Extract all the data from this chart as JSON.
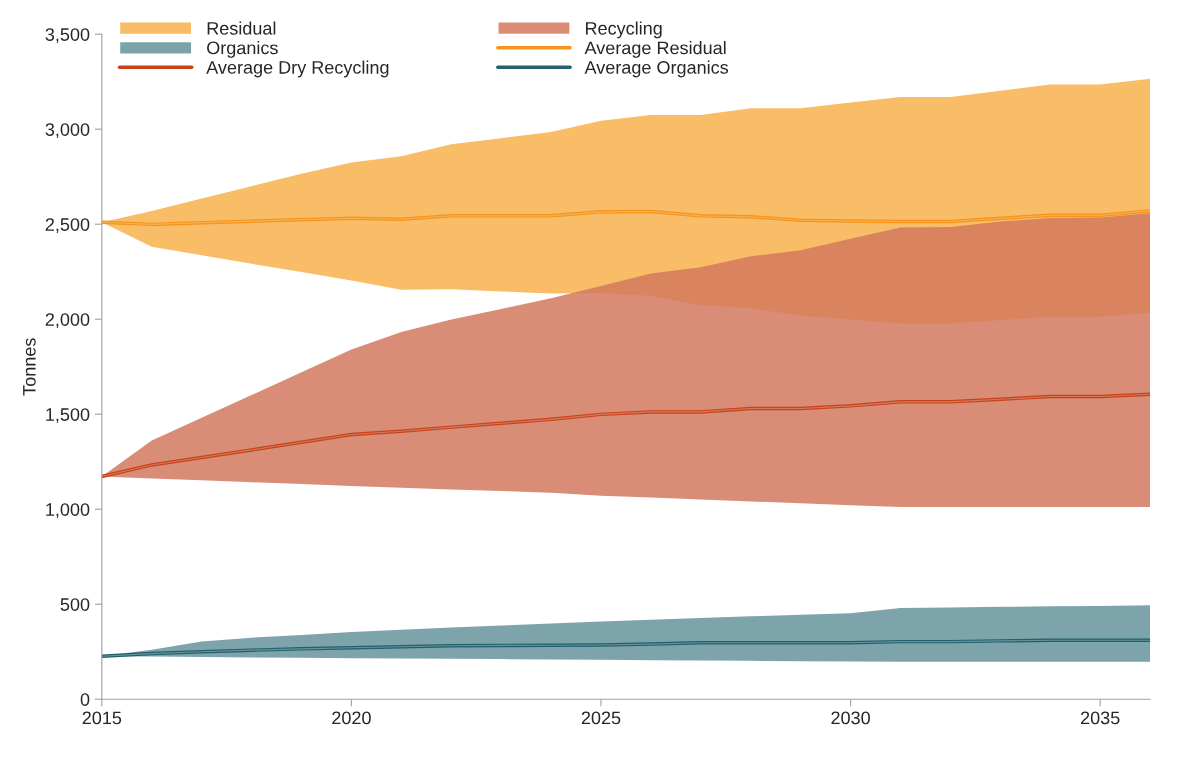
{
  "chart_data": {
    "type": "line",
    "ylabel": "Tonnes",
    "x": [
      2015,
      2016,
      2017,
      2018,
      2019,
      2020,
      2021,
      2022,
      2023,
      2024,
      2025,
      2026,
      2027,
      2028,
      2029,
      2030,
      2031,
      2032,
      2033,
      2034,
      2035,
      2036
    ],
    "series": [
      {
        "name": "Residual",
        "color": "#f8b04c",
        "values": [
          2510,
          2499,
          2508,
          2516,
          2524,
          2531,
          2526,
          2544,
          2544,
          2544,
          2565,
          2567,
          2544,
          2539,
          2521,
          2517,
          2514,
          2514,
          2531,
          2547,
          2547,
          2570
        ],
        "lower": [
          2510,
          2381,
          2336,
          2292,
          2248,
          2204,
          2155,
          2158,
          2146,
          2135,
          2138,
          2122,
          2074,
          2057,
          2018,
          1999,
          1977,
          1977,
          1995,
          2013,
          2013,
          2034
        ],
        "upper": [
          2510,
          2570,
          2635,
          2700,
          2765,
          2825,
          2858,
          2921,
          2953,
          2985,
          3045,
          3075,
          3075,
          3110,
          3110,
          3140,
          3170,
          3170,
          3202,
          3235,
          3235,
          3265
        ]
      },
      {
        "name": "Recycling",
        "color": "#d4795e",
        "values": [
          1172,
          1233,
          1272,
          1312,
          1352,
          1393,
          1410,
          1432,
          1452,
          1473,
          1499,
          1512,
          1512,
          1530,
          1530,
          1544,
          1565,
          1565,
          1579,
          1593,
          1593,
          1605
        ],
        "lower": [
          1172,
          1162,
          1152,
          1142,
          1132,
          1122,
          1113,
          1104,
          1096,
          1087,
          1071,
          1061,
          1051,
          1041,
          1031,
          1021,
          1012,
          1012,
          1012,
          1012,
          1012,
          1012
        ],
        "upper": [
          1172,
          1361,
          1481,
          1601,
          1721,
          1841,
          1933,
          1999,
          2054,
          2110,
          2175,
          2241,
          2273,
          2331,
          2363,
          2423,
          2482,
          2485,
          2514,
          2532,
          2535,
          2558
        ]
      },
      {
        "name": "Organics",
        "color": "#66949c",
        "values": [
          226,
          240,
          250,
          258,
          265,
          271,
          276,
          281,
          283,
          284,
          285,
          290,
          297,
          297,
          297,
          297,
          303,
          303,
          307,
          310,
          310,
          310
        ],
        "lower": [
          226,
          225,
          222,
          220,
          218,
          215,
          214,
          213,
          211,
          209,
          207,
          205,
          204,
          202,
          200,
          198,
          197,
          197,
          197,
          197,
          197,
          197
        ],
        "upper": [
          226,
          260,
          304,
          324,
          338,
          354,
          365,
          377,
          388,
          398,
          409,
          418,
          427,
          436,
          444,
          452,
          480,
          483,
          486,
          489,
          491,
          494
        ]
      },
      {
        "name": "Average Residual",
        "type": "line",
        "color": "#f7941d",
        "values": [
          2510,
          2499,
          2508,
          2516,
          2524,
          2531,
          2526,
          2544,
          2544,
          2544,
          2565,
          2567,
          2544,
          2539,
          2521,
          2517,
          2514,
          2514,
          2531,
          2547,
          2547,
          2570
        ]
      },
      {
        "name": "Average Dry Recycling",
        "type": "line",
        "color": "#c8431a",
        "values": [
          1172,
          1233,
          1272,
          1312,
          1352,
          1393,
          1410,
          1432,
          1452,
          1473,
          1499,
          1512,
          1512,
          1530,
          1530,
          1544,
          1565,
          1565,
          1579,
          1593,
          1593,
          1605
        ]
      },
      {
        "name": "Average Organics",
        "type": "line",
        "color": "#235f6d",
        "values": [
          226,
          240,
          250,
          258,
          265,
          271,
          276,
          281,
          283,
          284,
          285,
          290,
          297,
          297,
          297,
          297,
          303,
          303,
          307,
          310,
          310,
          310
        ]
      }
    ],
    "xlim": [
      2015,
      2036
    ],
    "xticks": [
      2015,
      2020,
      2025,
      2030,
      2035
    ],
    "ylim": [
      0,
      3500
    ],
    "yticks": [
      0,
      500,
      {
        "value": 1000,
        "label": "1,000"
      },
      {
        "value": 1500,
        "label": "1,500"
      },
      {
        "value": 2000,
        "label": "2,000"
      },
      {
        "value": 2500,
        "label": "2,500"
      },
      {
        "value": 3000,
        "label": "3,000"
      },
      {
        "value": 3500,
        "label": "3,500"
      }
    ],
    "grid": false,
    "legend": "top left"
  }
}
